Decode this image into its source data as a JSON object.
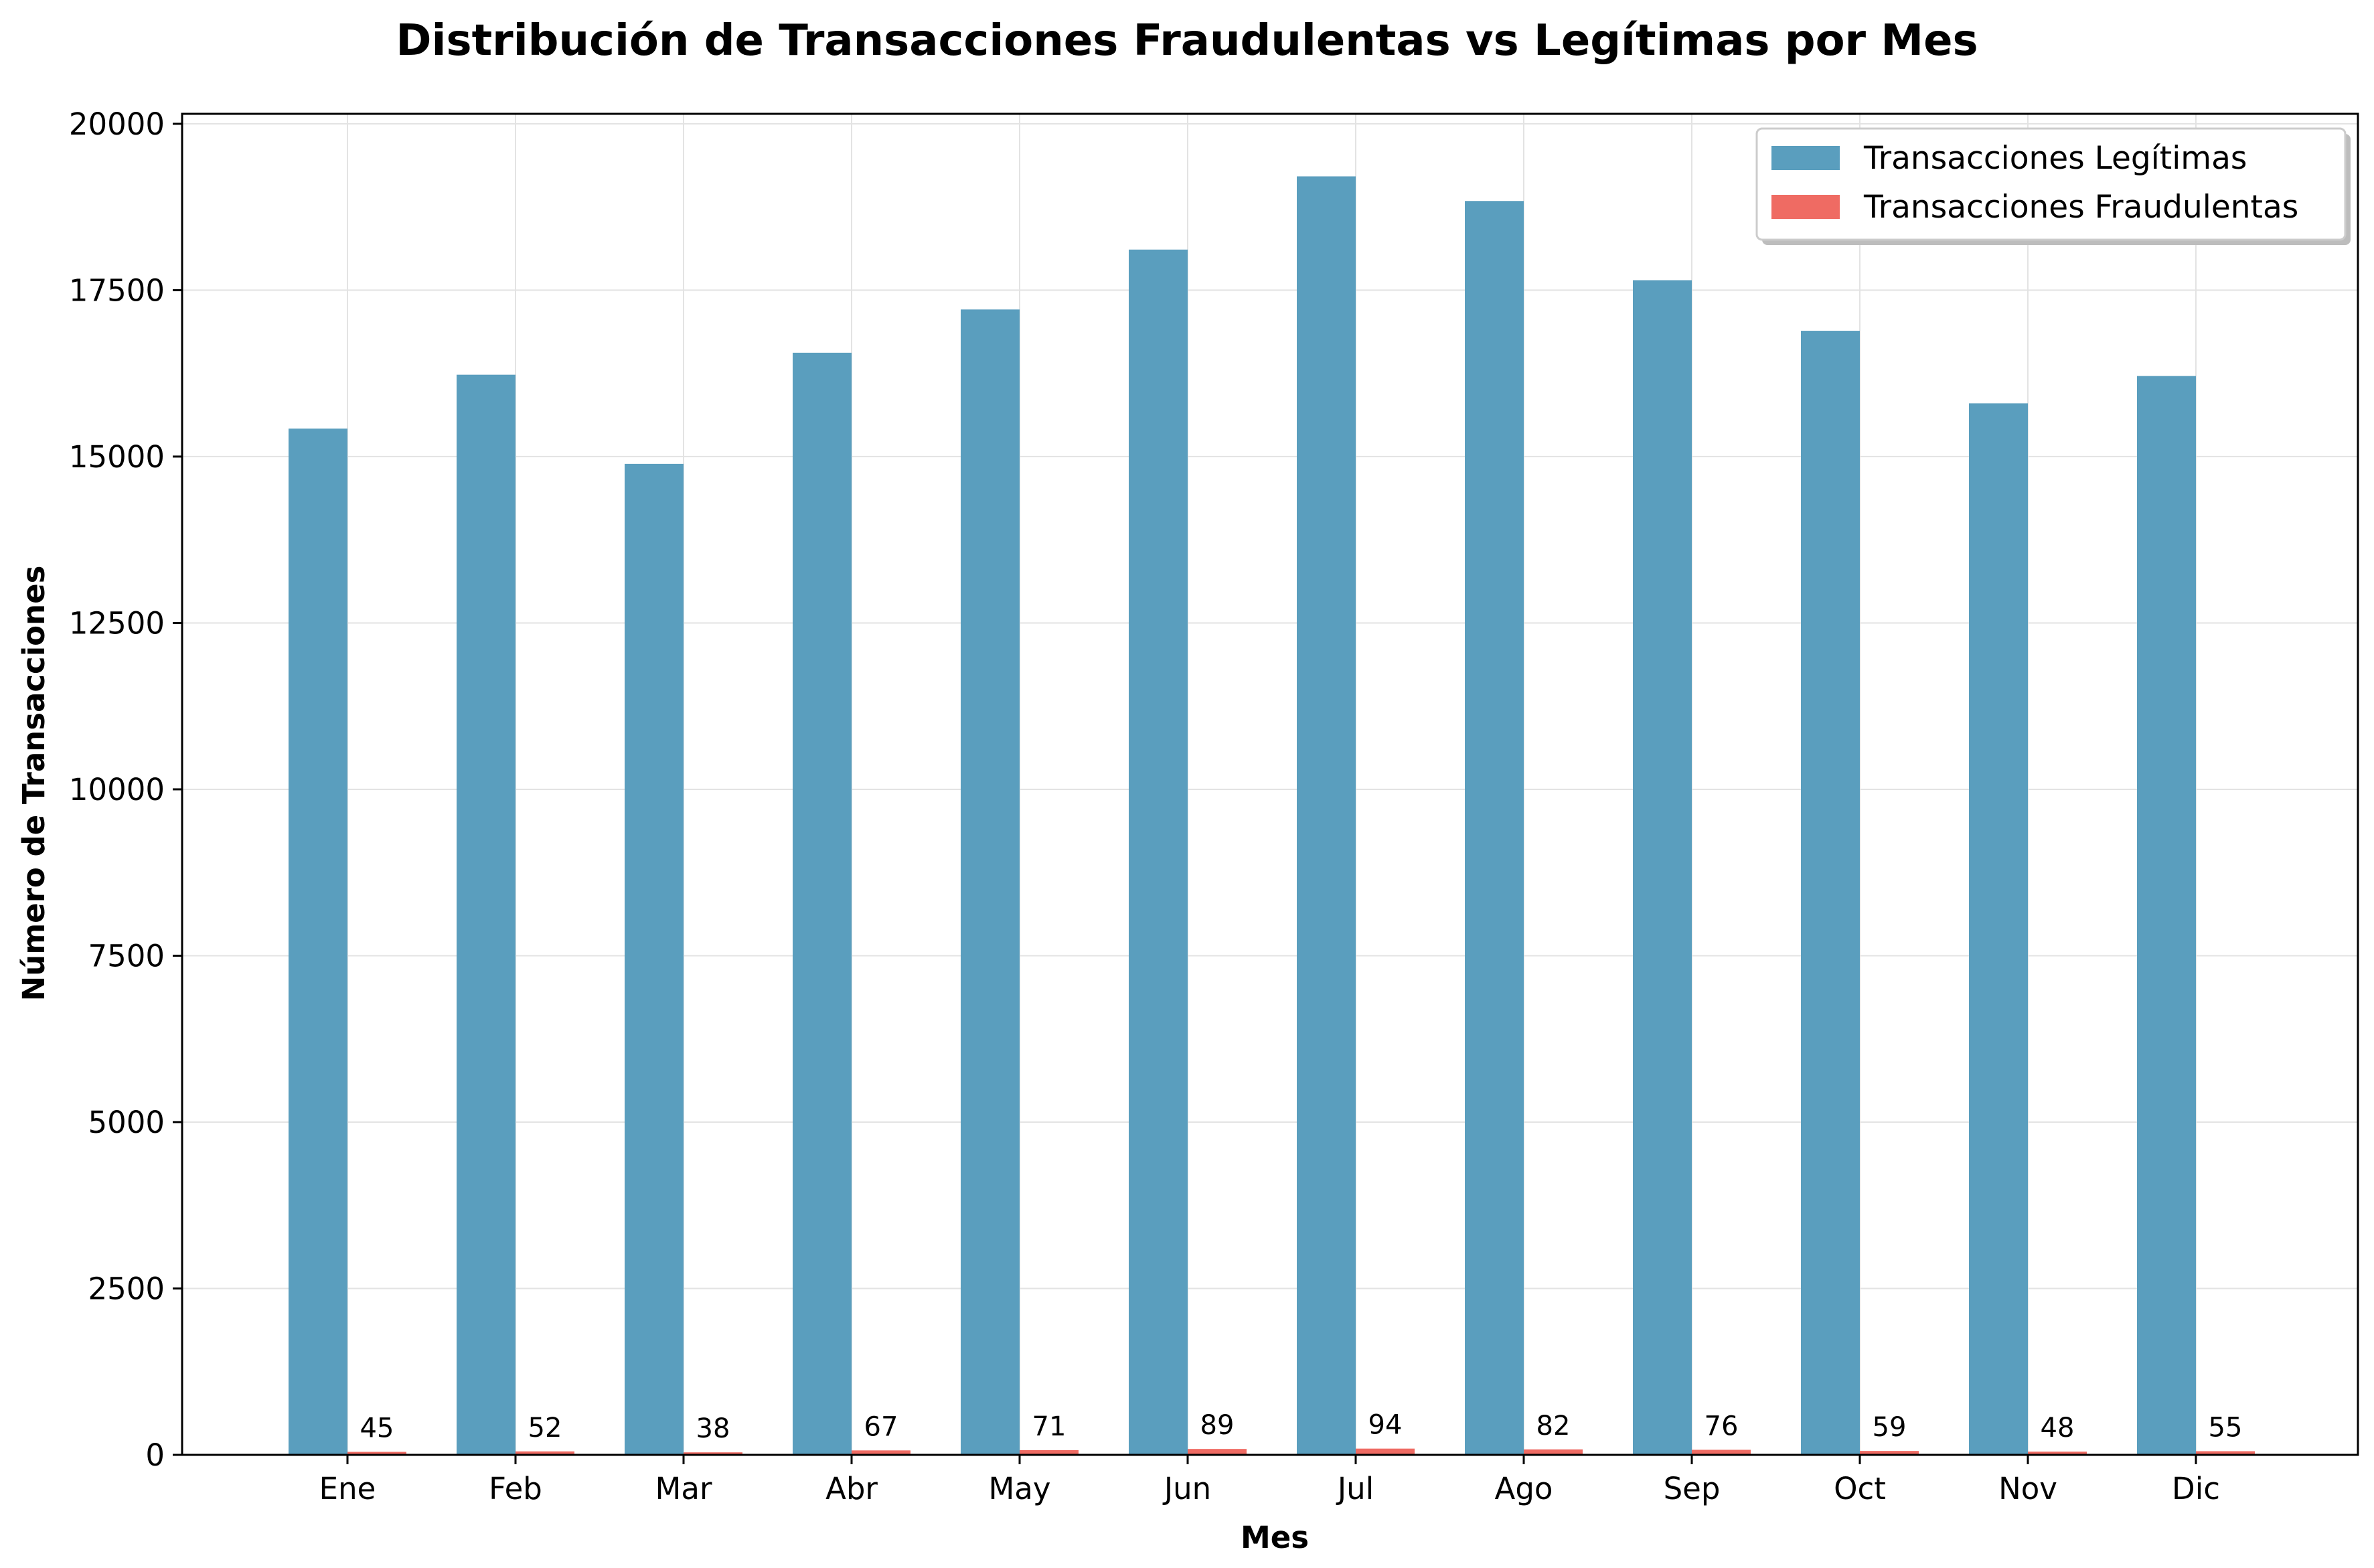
{
  "chart_data": {
    "type": "bar",
    "title": "Distribución de Transacciones Fraudulentas vs Legítimas por Mes",
    "xlabel": "Mes",
    "ylabel": "Número de Transacciones",
    "categories": [
      "Ene",
      "Feb",
      "Mar",
      "Abr",
      "May",
      "Jun",
      "Jul",
      "Ago",
      "Sep",
      "Oct",
      "Nov",
      "Dic"
    ],
    "series": [
      {
        "name": "Transacciones Legítimas",
        "color": "#5a9ebe",
        "values": [
          15420,
          16230,
          14890,
          16560,
          17210,
          18110,
          19210,
          18840,
          17650,
          16890,
          15800,
          16210
        ]
      },
      {
        "name": "Transacciones Fraudulentas",
        "color": "#ef6b63",
        "values": [
          45,
          52,
          38,
          67,
          71,
          89,
          94,
          82,
          76,
          59,
          48,
          55
        ]
      }
    ],
    "ylim": [
      0,
      20150
    ],
    "yticks": [
      0,
      2500,
      5000,
      7500,
      10000,
      12500,
      15000,
      17500,
      20000
    ],
    "grid": true,
    "legend_position": "top-right",
    "data_labels_series": "Transacciones Fraudulentas"
  }
}
